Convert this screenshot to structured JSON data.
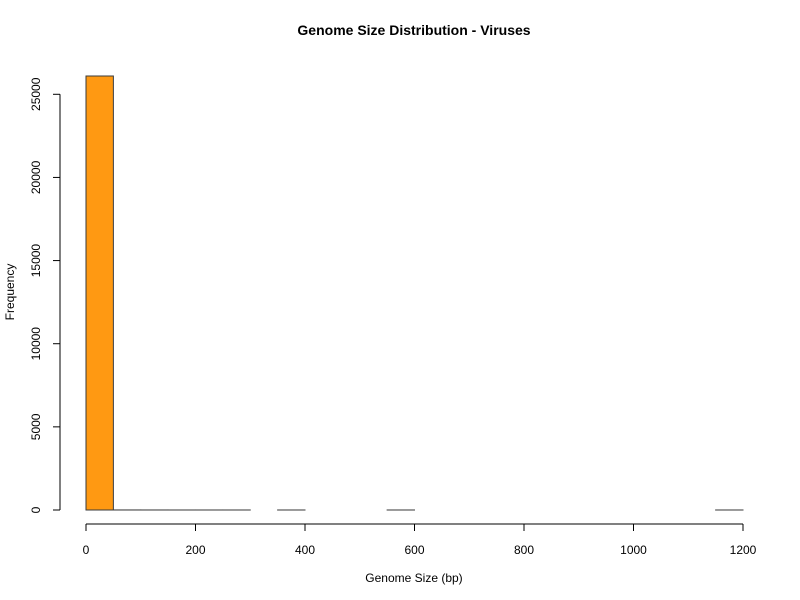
{
  "chart_data": {
    "type": "bar",
    "title": "Genome Size Distribution - Viruses",
    "xlabel": "Genome Size (bp)",
    "ylabel": "Frequency",
    "bin_width": 50,
    "x": [
      0,
      50,
      100,
      150,
      200,
      250,
      300,
      350,
      400,
      450,
      500,
      550,
      600,
      650,
      700,
      750,
      800,
      850,
      900,
      950,
      1000,
      1050,
      1100,
      1150
    ],
    "values": [
      26100,
      3,
      2,
      1,
      1,
      1,
      0,
      1,
      0,
      0,
      0,
      1,
      0,
      0,
      0,
      0,
      0,
      0,
      0,
      0,
      0,
      0,
      0,
      1
    ],
    "xlim": [
      0,
      1200
    ],
    "ylim": [
      0,
      26100
    ],
    "x_ticks": [
      0,
      200,
      400,
      600,
      800,
      1000,
      1200
    ],
    "y_ticks": [
      0,
      5000,
      10000,
      15000,
      20000,
      25000
    ],
    "grid": false,
    "colors": {
      "bar_fill": "#FF9912",
      "bar_stroke": "#3a3a3a",
      "axis": "#000000"
    }
  }
}
